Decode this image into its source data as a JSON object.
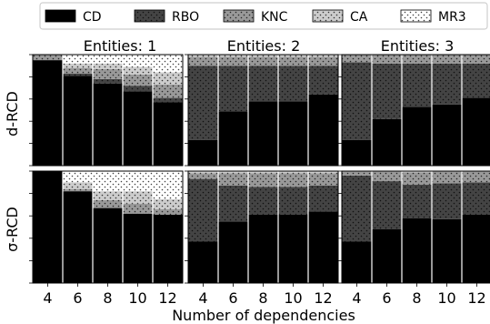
{
  "chart_data": {
    "type": "bar",
    "stacked": true,
    "normalized": true,
    "xlabel": "Number of dependencies",
    "categories": [
      "4",
      "6",
      "8",
      "10",
      "12"
    ],
    "ylim": [
      0,
      1
    ],
    "legend": {
      "placement": "top",
      "entries": [
        {
          "name": "CD",
          "color": "#000000",
          "pattern": "solid"
        },
        {
          "name": "RBO",
          "color": "#444444",
          "pattern": "dots"
        },
        {
          "name": "KNC",
          "color": "#999999",
          "pattern": "dots"
        },
        {
          "name": "CA",
          "color": "#cccccc",
          "pattern": "dots"
        },
        {
          "name": "MR3",
          "color": "#ffffff",
          "pattern": "dots"
        }
      ]
    },
    "row_labels": [
      "d-RCD",
      "σ-RCD"
    ],
    "column_titles": [
      "Entities: 1",
      "Entities: 2",
      "Entities: 3"
    ],
    "panels": [
      {
        "row": 0,
        "col": 0,
        "series": [
          {
            "name": "CD",
            "values": [
              0.95,
              0.81,
              0.74,
              0.67,
              0.57
            ]
          },
          {
            "name": "RBO",
            "values": [
              0.0,
              0.02,
              0.04,
              0.05,
              0.04
            ]
          },
          {
            "name": "KNC",
            "values": [
              0.05,
              0.05,
              0.09,
              0.1,
              0.12
            ]
          },
          {
            "name": "CA",
            "values": [
              0.0,
              0.04,
              0.05,
              0.07,
              0.11
            ]
          },
          {
            "name": "MR3",
            "values": [
              0.0,
              0.08,
              0.08,
              0.11,
              0.16
            ]
          }
        ]
      },
      {
        "row": 0,
        "col": 1,
        "series": [
          {
            "name": "CD",
            "values": [
              0.23,
              0.49,
              0.58,
              0.58,
              0.64
            ]
          },
          {
            "name": "RBO",
            "values": [
              0.67,
              0.41,
              0.32,
              0.32,
              0.26
            ]
          },
          {
            "name": "KNC",
            "values": [
              0.08,
              0.08,
              0.08,
              0.08,
              0.08
            ]
          },
          {
            "name": "CA",
            "values": [
              0.02,
              0.02,
              0.02,
              0.02,
              0.02
            ]
          },
          {
            "name": "MR3",
            "values": [
              0.0,
              0.0,
              0.0,
              0.0,
              0.0
            ]
          }
        ]
      },
      {
        "row": 0,
        "col": 2,
        "series": [
          {
            "name": "CD",
            "values": [
              0.23,
              0.42,
              0.53,
              0.55,
              0.61
            ]
          },
          {
            "name": "RBO",
            "values": [
              0.7,
              0.5,
              0.39,
              0.37,
              0.31
            ]
          },
          {
            "name": "KNC",
            "values": [
              0.07,
              0.08,
              0.08,
              0.08,
              0.08
            ]
          },
          {
            "name": "CA",
            "values": [
              0.0,
              0.0,
              0.0,
              0.0,
              0.0
            ]
          },
          {
            "name": "MR3",
            "values": [
              0.0,
              0.0,
              0.0,
              0.0,
              0.0
            ]
          }
        ]
      },
      {
        "row": 1,
        "col": 0,
        "series": [
          {
            "name": "CD",
            "values": [
              1.0,
              0.82,
              0.67,
              0.62,
              0.61
            ]
          },
          {
            "name": "RBO",
            "values": [
              0.0,
              0.0,
              0.0,
              0.0,
              0.0
            ]
          },
          {
            "name": "KNC",
            "values": [
              0.0,
              0.02,
              0.07,
              0.09,
              0.05
            ]
          },
          {
            "name": "CA",
            "values": [
              0.0,
              0.06,
              0.08,
              0.11,
              0.09
            ]
          },
          {
            "name": "MR3",
            "values": [
              0.0,
              0.1,
              0.18,
              0.18,
              0.25
            ]
          }
        ]
      },
      {
        "row": 1,
        "col": 1,
        "series": [
          {
            "name": "CD",
            "values": [
              0.37,
              0.55,
              0.61,
              0.61,
              0.64
            ]
          },
          {
            "name": "RBO",
            "values": [
              0.56,
              0.32,
              0.25,
              0.25,
              0.23
            ]
          },
          {
            "name": "KNC",
            "values": [
              0.05,
              0.11,
              0.12,
              0.12,
              0.11
            ]
          },
          {
            "name": "CA",
            "values": [
              0.02,
              0.02,
              0.02,
              0.02,
              0.02
            ]
          },
          {
            "name": "MR3",
            "values": [
              0.0,
              0.0,
              0.0,
              0.0,
              0.0
            ]
          }
        ]
      },
      {
        "row": 1,
        "col": 2,
        "series": [
          {
            "name": "CD",
            "values": [
              0.37,
              0.48,
              0.58,
              0.57,
              0.61
            ]
          },
          {
            "name": "RBO",
            "values": [
              0.59,
              0.43,
              0.3,
              0.32,
              0.29
            ]
          },
          {
            "name": "KNC",
            "values": [
              0.04,
              0.09,
              0.11,
              0.11,
              0.1
            ]
          },
          {
            "name": "CA",
            "values": [
              0.0,
              0.0,
              0.01,
              0.0,
              0.0
            ]
          },
          {
            "name": "MR3",
            "values": [
              0.0,
              0.0,
              0.0,
              0.0,
              0.0
            ]
          }
        ]
      }
    ]
  }
}
